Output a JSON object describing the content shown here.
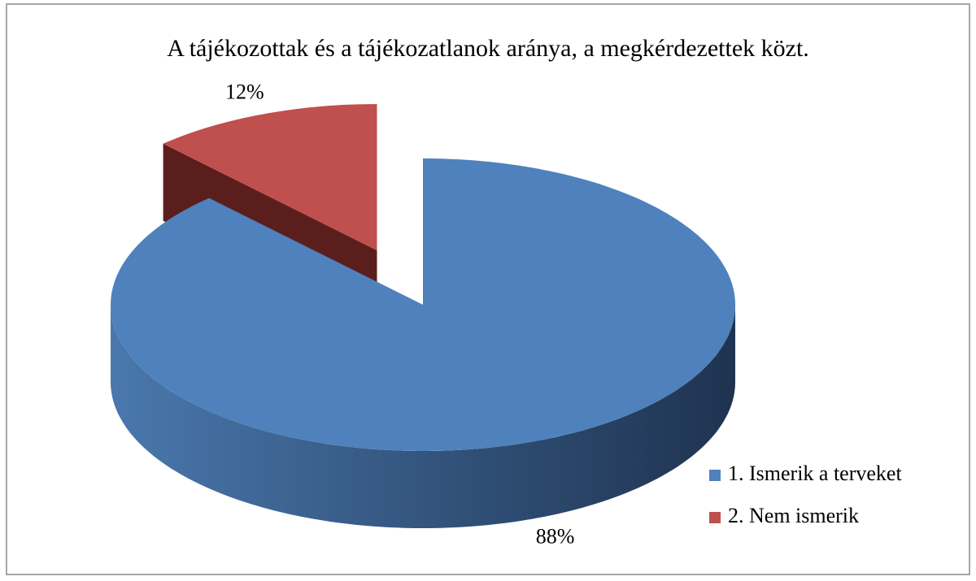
{
  "chart_data": {
    "type": "pie3d",
    "title": "A tájékozottak és a tájékozatlanok aránya,  a megkérdezettek közt.",
    "categories": [
      "1. Ismerik a terveket",
      "2. Nem ismerik"
    ],
    "values": [
      88,
      12
    ],
    "value_labels": [
      "88%",
      "12%"
    ],
    "colors": [
      "#4f81bd",
      "#c0504d"
    ],
    "exploded": [
      false,
      true
    ],
    "legend": "right"
  }
}
